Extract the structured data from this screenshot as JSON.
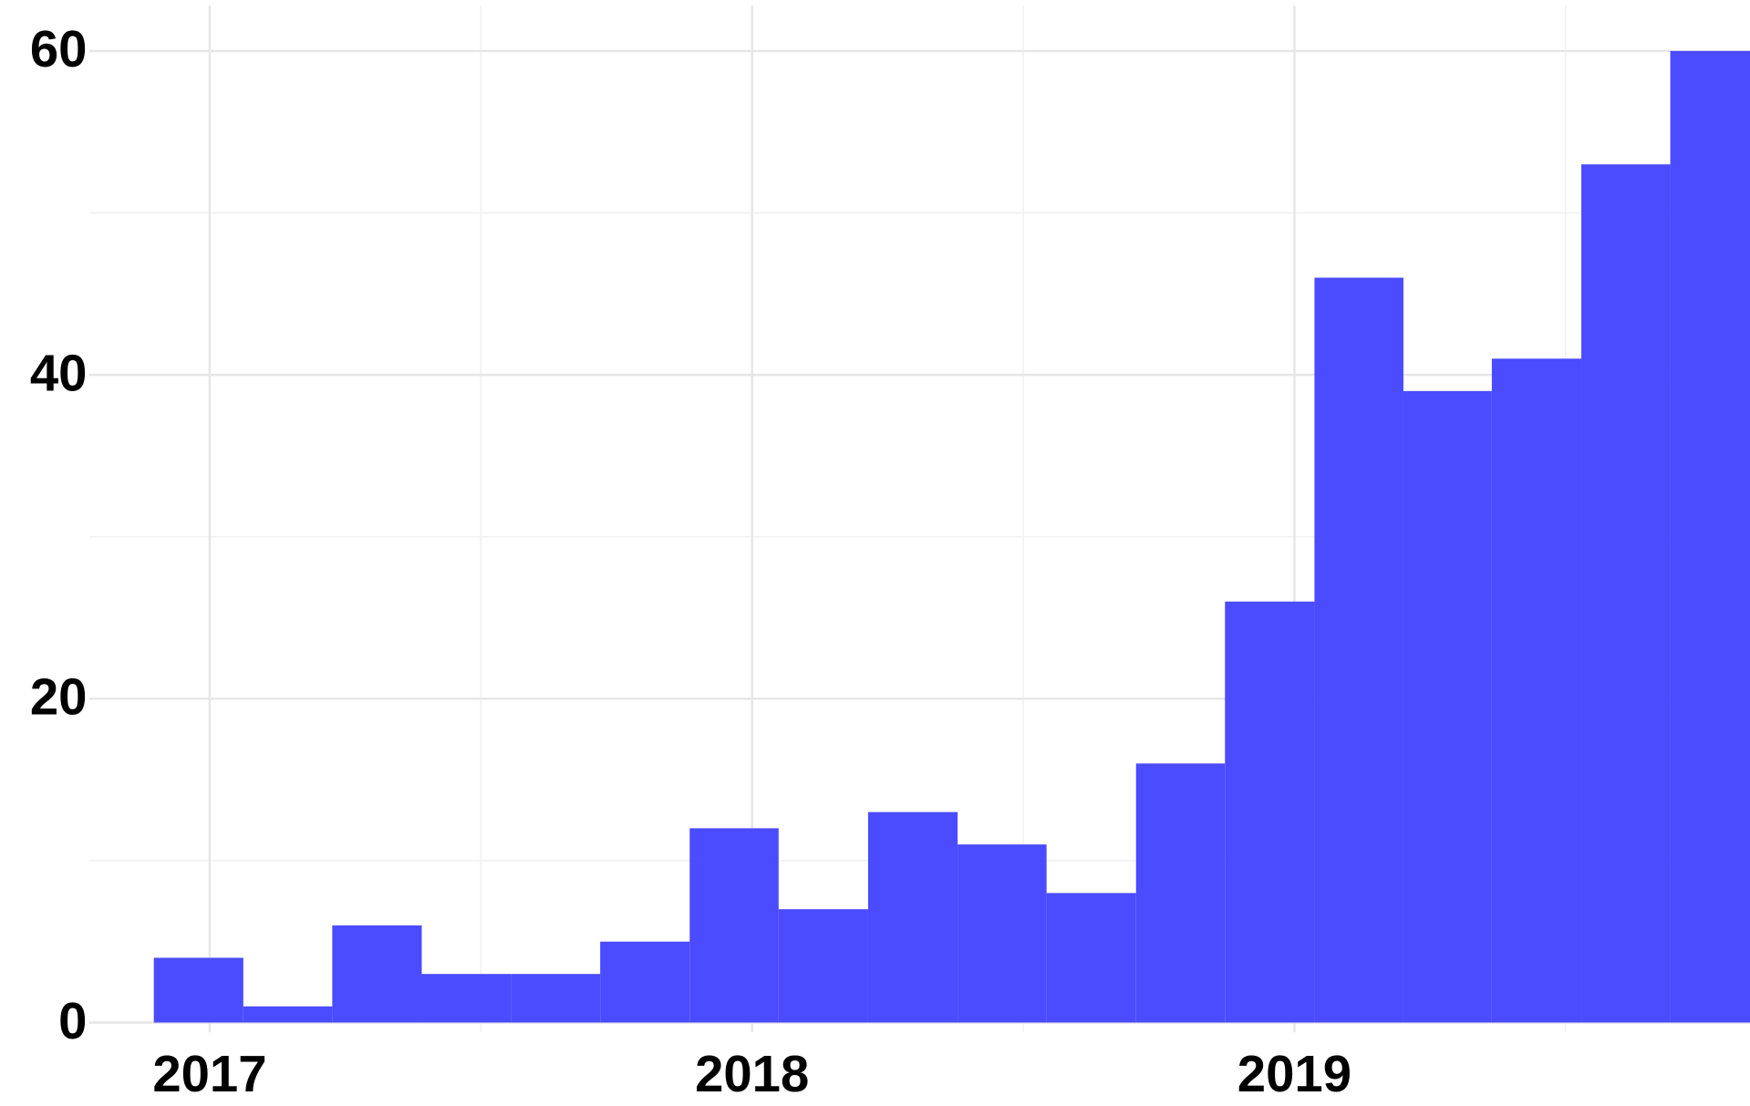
{
  "chart_data": {
    "type": "histogram",
    "bins": [
      2016.897,
      2017.062,
      2017.226,
      2017.391,
      2017.556,
      2017.72,
      2017.885,
      2018.049,
      2018.214,
      2018.379,
      2018.543,
      2018.708,
      2018.872,
      2019.037,
      2019.201,
      2019.364,
      2019.529,
      2019.693,
      2019.858
    ],
    "values": [
      4,
      1,
      6,
      3,
      3,
      5,
      12,
      7,
      13,
      11,
      8,
      16,
      26,
      46,
      39,
      41,
      53,
      60
    ],
    "color": "#4b4bff",
    "xlim": [
      2016.778,
      2019.84
    ],
    "xticks": [
      2017,
      2018,
      2019
    ],
    "x_minor_ticks": [
      2017.5,
      2018.5,
      2019.5
    ],
    "ylim": [
      -0.6,
      62.8
    ],
    "yticks": [
      0,
      20,
      40,
      60
    ],
    "y_minor_ticks": [
      10,
      30,
      50
    ],
    "grid": true
  }
}
